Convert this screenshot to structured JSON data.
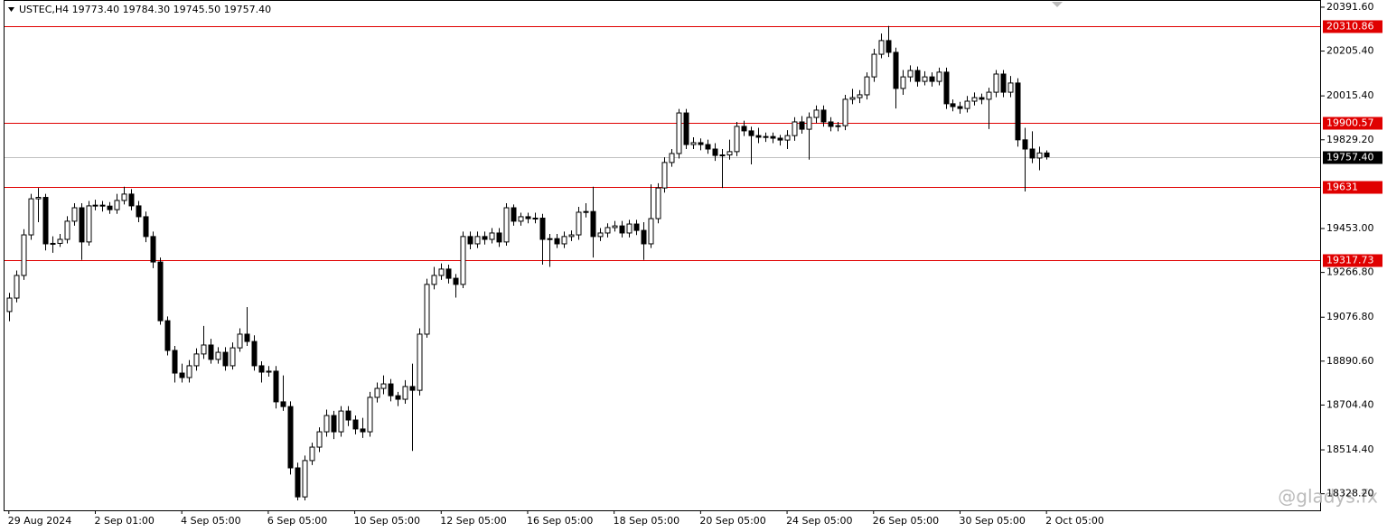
{
  "chart_data": {
    "type": "candlestick",
    "header": "USTEC,H4  19773.40 19784.30 19745.50 19757.40",
    "watermark": "@gladys.fx",
    "ylim": [
      18258,
      20422
    ],
    "xlim": [
      -0.6,
      182.1
    ],
    "yticks": [
      {
        "value": 20391.6,
        "label": "20391.60"
      },
      {
        "value": 20205.4,
        "label": "20205.40"
      },
      {
        "value": 20015.4,
        "label": "20015.40"
      },
      {
        "value": 19829.2,
        "label": "19829.20"
      },
      {
        "value": 19453,
        "label": "19453.00"
      },
      {
        "value": 19266.8,
        "label": "19266.80"
      },
      {
        "value": 19076.8,
        "label": "19076.80"
      },
      {
        "value": 18890.6,
        "label": "18890.60"
      },
      {
        "value": 18704.4,
        "label": "18704.40"
      },
      {
        "value": 18514.4,
        "label": "18514.40"
      },
      {
        "value": 18328.2,
        "label": "18328.20"
      }
    ],
    "xticks": [
      {
        "value": 0,
        "label": "29 Aug 2024"
      },
      {
        "value": 12,
        "label": "2 Sep 01:00"
      },
      {
        "value": 24,
        "label": "4 Sep 05:00"
      },
      {
        "value": 36,
        "label": "6 Sep 05:00"
      },
      {
        "value": 48,
        "label": "10 Sep 05:00"
      },
      {
        "value": 60,
        "label": "12 Sep 05:00"
      },
      {
        "value": 72,
        "label": "16 Sep 05:00"
      },
      {
        "value": 84,
        "label": "18 Sep 05:00"
      },
      {
        "value": 96,
        "label": "20 Sep 05:00"
      },
      {
        "value": 108,
        "label": "24 Sep 05:00"
      },
      {
        "value": 120,
        "label": "26 Sep 05:00"
      },
      {
        "value": 132,
        "label": "30 Sep 05:00"
      },
      {
        "value": 144,
        "label": "2 Oct 05:00"
      }
    ],
    "levels": [
      20310.86,
      19900.57,
      19631.0,
      19317.73
    ],
    "level_color": "#e00000",
    "last_price": {
      "value": 19757.4,
      "label": "19757.40"
    },
    "up_color": "#ffffff",
    "down_color": "#000000",
    "open": [
      19101,
      19158,
      19254,
      19426,
      19579,
      19585,
      19388,
      19390,
      19407,
      19484,
      19541,
      19396,
      19549,
      19552,
      19548,
      19533,
      19572,
      19599,
      19549,
      19503,
      19419,
      19311,
      19062,
      18936,
      18840,
      18821,
      18871,
      18921,
      18959,
      18898,
      18928,
      18871,
      18947,
      19005,
      18974,
      18871,
      18844,
      18848,
      18718,
      18698,
      18438,
      18315,
      18469,
      18526,
      18591,
      18660,
      18591,
      18679,
      18641,
      18603,
      18591,
      18737,
      18775,
      18794,
      18744,
      18729,
      18783,
      18767,
      19005,
      19216,
      19254,
      19281,
      19242,
      19216,
      19419,
      19388,
      19419,
      19407,
      19434,
      19396,
      19541,
      19484,
      19503,
      19495,
      19497,
      19407,
      19410,
      19388,
      19419,
      19426,
      19522,
      19525,
      19419,
      19434,
      19457,
      19464,
      19434,
      19472,
      19445,
      19388,
      19495,
      19625,
      19733,
      19771,
      19943,
      19809,
      19817,
      19809,
      19790,
      19763,
      19765,
      19779,
      19886,
      19867,
      19847,
      19840,
      19843,
      19836,
      19828,
      19847,
      19905,
      19874,
      19924,
      19955,
      19905,
      19886,
      19889,
      20001,
      20008,
      20020,
      20096,
      20192,
      20250,
      20200,
      20047,
      20096,
      20123,
      20077,
      20096,
      20077,
      20116,
      19982,
      19970,
      19962,
      19993,
      20008,
      20001,
      20031,
      20108,
      20031,
      20070,
      19829,
      19790,
      19752,
      19773.4
    ],
    "high": [
      19180,
      19275,
      19450,
      19600,
      19625,
      19600,
      19420,
      19430,
      19505,
      19560,
      19560,
      19570,
      19575,
      19570,
      19565,
      19600,
      19630,
      19620,
      19570,
      19525,
      19440,
      19330,
      19080,
      18955,
      18880,
      18895,
      18945,
      19040,
      18985,
      18950,
      18950,
      18970,
      19030,
      19120,
      19000,
      18890,
      18870,
      18870,
      18830,
      18720,
      18460,
      18490,
      18545,
      18610,
      18685,
      18680,
      18700,
      18700,
      18660,
      18650,
      18760,
      18800,
      18830,
      18815,
      18760,
      18810,
      18880,
      19030,
      19240,
      19290,
      19305,
      19300,
      19260,
      19440,
      19440,
      19440,
      19440,
      19455,
      19455,
      19560,
      19555,
      19520,
      19520,
      19520,
      19515,
      19430,
      19430,
      19440,
      19445,
      19545,
      19560,
      19630,
      19455,
      19475,
      19485,
      19485,
      19490,
      19490,
      19480,
      19640,
      19645,
      19755,
      19790,
      19960,
      19960,
      19840,
      19835,
      19830,
      19815,
      19790,
      19830,
      19905,
      19910,
      19885,
      19880,
      19860,
      19860,
      19850,
      19870,
      19925,
      19930,
      19945,
      19975,
      19975,
      19925,
      19905,
      20020,
      20045,
      20040,
      20115,
      20215,
      20280,
      20312,
      20220,
      20125,
      20145,
      20140,
      20120,
      20115,
      20135,
      20135,
      20000,
      19990,
      20015,
      20030,
      20025,
      20050,
      20125,
      20125,
      20100,
      20090,
      19880,
      19865,
      19800,
      19784.3
    ],
    "low": [
      19060,
      19140,
      19235,
      19405,
      19480,
      19360,
      19350,
      19375,
      19390,
      19465,
      19320,
      19380,
      19530,
      19525,
      19515,
      19515,
      19555,
      19530,
      19480,
      19395,
      19285,
      19045,
      18915,
      18800,
      18800,
      18800,
      18850,
      18900,
      18880,
      18880,
      18850,
      18855,
      18930,
      18955,
      18850,
      18800,
      18825,
      18690,
      18680,
      18410,
      18300,
      18300,
      18450,
      18505,
      18570,
      18560,
      18570,
      18615,
      18580,
      18565,
      18570,
      18715,
      18750,
      18720,
      18700,
      18710,
      18510,
      18745,
      18990,
      19195,
      19235,
      19220,
      19160,
      19200,
      19365,
      19370,
      19385,
      19390,
      19375,
      19380,
      19465,
      19465,
      19475,
      19475,
      19300,
      19290,
      19370,
      19370,
      19400,
      19405,
      19500,
      19330,
      19400,
      19415,
      19440,
      19415,
      19415,
      19425,
      19320,
      19370,
      19475,
      19605,
      19715,
      19750,
      19790,
      19790,
      19785,
      19770,
      19740,
      19625,
      19745,
      19760,
      19845,
      19725,
      19815,
      19820,
      19815,
      19805,
      19790,
      19825,
      19855,
      19745,
      19900,
      19885,
      19865,
      19865,
      19870,
      19980,
      19985,
      20000,
      20075,
      20175,
      20180,
      19962,
      20020,
      20075,
      20055,
      20060,
      20055,
      20060,
      19960,
      19950,
      19940,
      19945,
      19975,
      19980,
      19875,
      20010,
      20010,
      20010,
      19800,
      19610,
      19730,
      19700,
      19745.5
    ],
    "close": [
      19158,
      19254,
      19426,
      19579,
      19585,
      19388,
      19390,
      19407,
      19484,
      19541,
      19396,
      19549,
      19552,
      19548,
      19533,
      19572,
      19599,
      19549,
      19503,
      19419,
      19311,
      19062,
      18936,
      18840,
      18821,
      18871,
      18921,
      18959,
      18898,
      18928,
      18871,
      18947,
      19005,
      18974,
      18871,
      18844,
      18848,
      18718,
      18698,
      18438,
      18315,
      18469,
      18526,
      18591,
      18660,
      18591,
      18679,
      18641,
      18603,
      18591,
      18737,
      18775,
      18794,
      18744,
      18729,
      18783,
      18767,
      19005,
      19216,
      19254,
      19281,
      19242,
      19216,
      19419,
      19388,
      19419,
      19407,
      19434,
      19396,
      19541,
      19484,
      19503,
      19495,
      19497,
      19407,
      19410,
      19388,
      19419,
      19426,
      19522,
      19525,
      19419,
      19434,
      19457,
      19464,
      19434,
      19472,
      19445,
      19388,
      19495,
      19625,
      19733,
      19771,
      19943,
      19809,
      19817,
      19809,
      19790,
      19763,
      19765,
      19779,
      19886,
      19867,
      19847,
      19840,
      19843,
      19836,
      19828,
      19847,
      19905,
      19874,
      19924,
      19955,
      19905,
      19886,
      19889,
      20001,
      20008,
      20020,
      20096,
      20192,
      20250,
      20200,
      20047,
      20096,
      20123,
      20077,
      20096,
      20077,
      20116,
      19982,
      19970,
      19962,
      19993,
      20008,
      20001,
      20031,
      20108,
      20031,
      20070,
      19829,
      19790,
      19752,
      19773.4,
      19757.4
    ]
  }
}
